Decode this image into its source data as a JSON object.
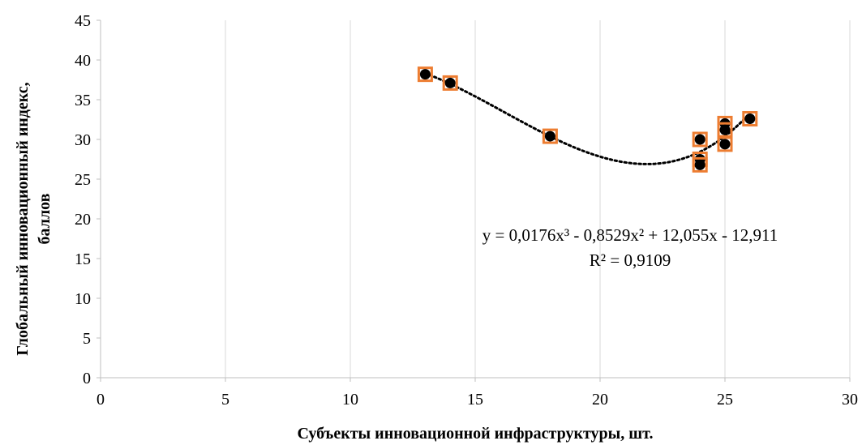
{
  "chart_data": {
    "type": "scatter",
    "xlabel": "Субъекты инновационной инфраструктуры, шт.",
    "ylabel_lines": [
      "Глобальный инновационный индекс,",
      "баллов"
    ],
    "xlim": [
      0,
      30
    ],
    "ylim": [
      0,
      45
    ],
    "x_ticks": [
      0,
      5,
      10,
      15,
      20,
      25,
      30
    ],
    "y_ticks": [
      0,
      5,
      10,
      15,
      20,
      25,
      30,
      35,
      40,
      45
    ],
    "grid": {
      "vertical": true,
      "horizontal": false
    },
    "points": [
      {
        "x": 13,
        "y": 38.2
      },
      {
        "x": 14,
        "y": 37.1
      },
      {
        "x": 18,
        "y": 30.4
      },
      {
        "x": 24,
        "y": 30.0
      },
      {
        "x": 24,
        "y": 27.5
      },
      {
        "x": 24,
        "y": 26.8
      },
      {
        "x": 25,
        "y": 32.0
      },
      {
        "x": 25,
        "y": 31.2
      },
      {
        "x": 25,
        "y": 29.4
      },
      {
        "x": 26,
        "y": 32.6
      }
    ],
    "trendline": {
      "type": "polynomial",
      "order": 3,
      "coefficients": [
        0.0176,
        -0.8529,
        12.055,
        -12.911
      ],
      "x_range": [
        13,
        26
      ],
      "equation_text": "y = 0,0176x³ - 0,8529x² + 12,055x - 12,911",
      "r2_text": "R² = 0,9109"
    },
    "colors": {
      "marker_fill": "#000000",
      "marker_square": "#ED7D31",
      "gridline": "#D9D9D9",
      "axis": "#BFBFBF",
      "trendline": "#000000"
    }
  }
}
